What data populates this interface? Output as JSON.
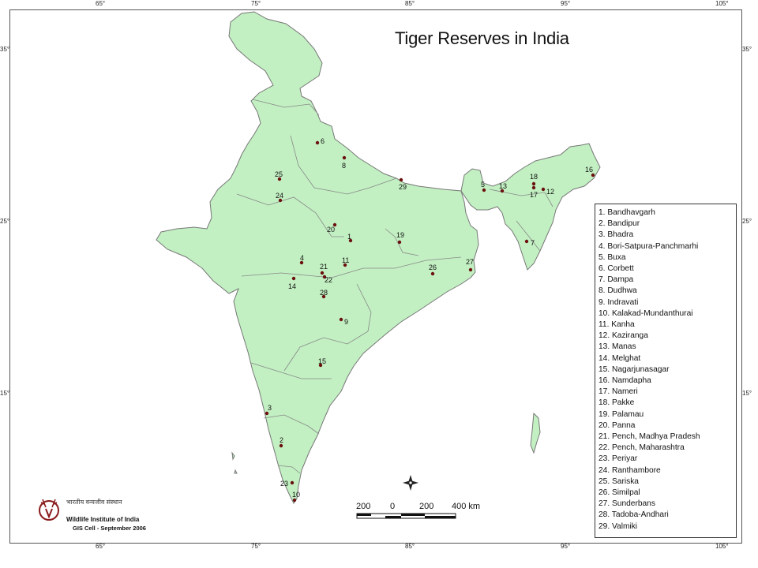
{
  "title": "Tiger Reserves in India",
  "longitude_ticks": [
    "65°",
    "75°",
    "85°",
    "95°",
    "105°"
  ],
  "latitude_ticks": [
    "35°",
    "25°",
    "15°"
  ],
  "legend": [
    "1.  Bandhavgarh",
    "2.  Bandipur",
    "3.  Bhadra",
    "4.  Bori-Satpura-Panchmarhi",
    "5.  Buxa",
    "6.  Corbett",
    "7.  Dampa",
    "8.  Dudhwa",
    "9.  Indravati",
    "10.  Kalakad-Mundanthurai",
    "11.  Kanha",
    "12.  Kaziranga",
    "13.  Manas",
    "14.  Melghat",
    "15.  Nagarjunasagar",
    "16.  Namdapha",
    "17.  Nameri",
    "18.  Pakke",
    "19.  Palamau",
    "20.  Panna",
    "21.  Pench, Madhya Pradesh",
    "22.  Pench, Maharashtra",
    "23.  Periyar",
    "24.  Ranthambore",
    "25.  Sariska",
    "26.  Similpal",
    "27.  Sunderbans",
    "28.  Tadoba-Andhari",
    "29.  Valmiki"
  ],
  "reserve_markers": [
    "1",
    "2",
    "3",
    "4",
    "5",
    "6",
    "7",
    "8",
    "9",
    "10",
    "11",
    "12",
    "13",
    "14",
    "15",
    "16",
    "17",
    "18",
    "19",
    "20",
    "21",
    "22",
    "23",
    "24",
    "25",
    "26",
    "27",
    "28",
    "29"
  ],
  "scale": {
    "labels": [
      "200",
      "0",
      "200",
      "400 km"
    ]
  },
  "logo": {
    "hindi": "भारतीय वन्यजीव संस्थान",
    "name": "Wildlife Institute of India",
    "credit": "GIS Cell - September 2006"
  },
  "colors": {
    "land": "#c2f0c2",
    "border": "#777777",
    "marker": "#6b0f0f"
  }
}
